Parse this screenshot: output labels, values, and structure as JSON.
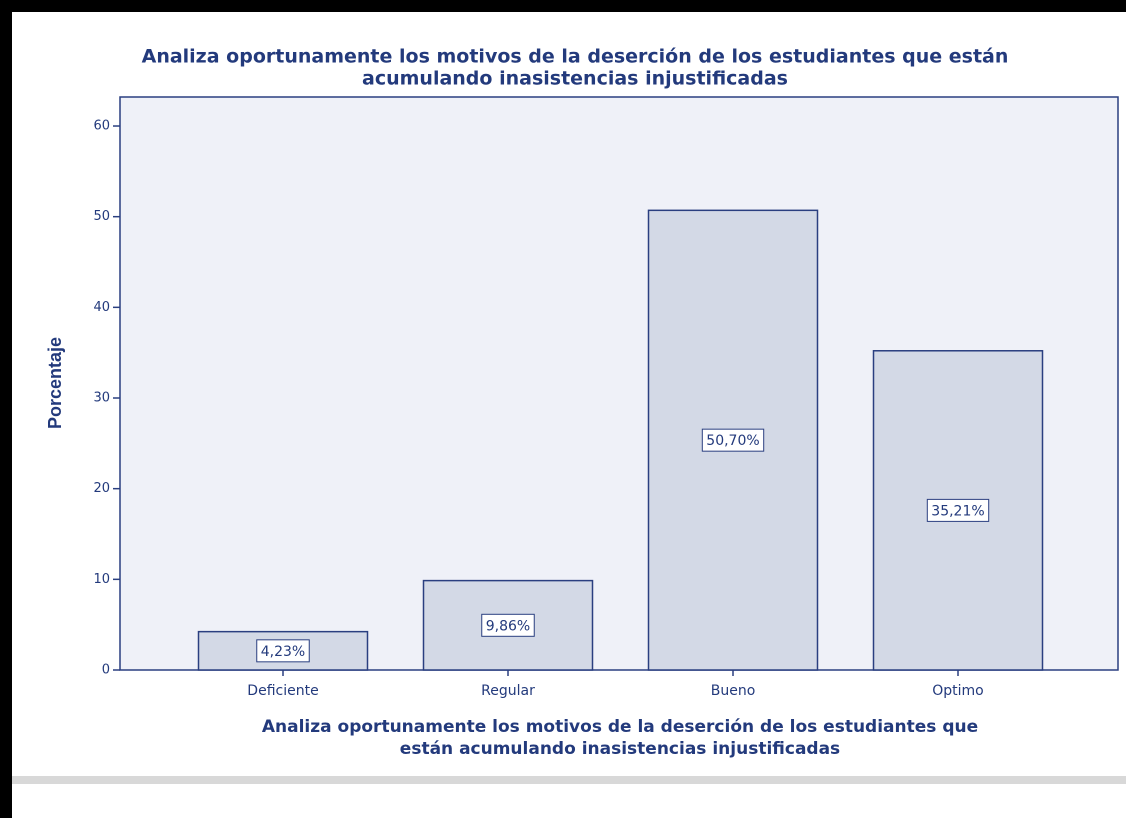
{
  "chart_data": {
    "type": "bar",
    "title": [
      "Analiza oportunamente los motivos de la deserción de los estudiantes que están",
      "acumulando inasistencias injustificadas"
    ],
    "x_label": [
      "Analiza oportunamente los motivos de la deserción de los estudiantes que",
      "están acumulando inasistencias injustificadas"
    ],
    "y_label": "Porcentaje",
    "categories": [
      "Deficiente",
      "Regular",
      "Bueno",
      "Optimo"
    ],
    "values": [
      4.23,
      9.86,
      50.7,
      35.21
    ],
    "value_labels": [
      "4,23%",
      "9,86%",
      "50,70%",
      "35,21%"
    ],
    "color": "#d3d9e6",
    "ylim": [
      0,
      63.2
    ],
    "yticks": [
      0,
      10,
      20,
      30,
      40,
      50,
      60
    ]
  }
}
